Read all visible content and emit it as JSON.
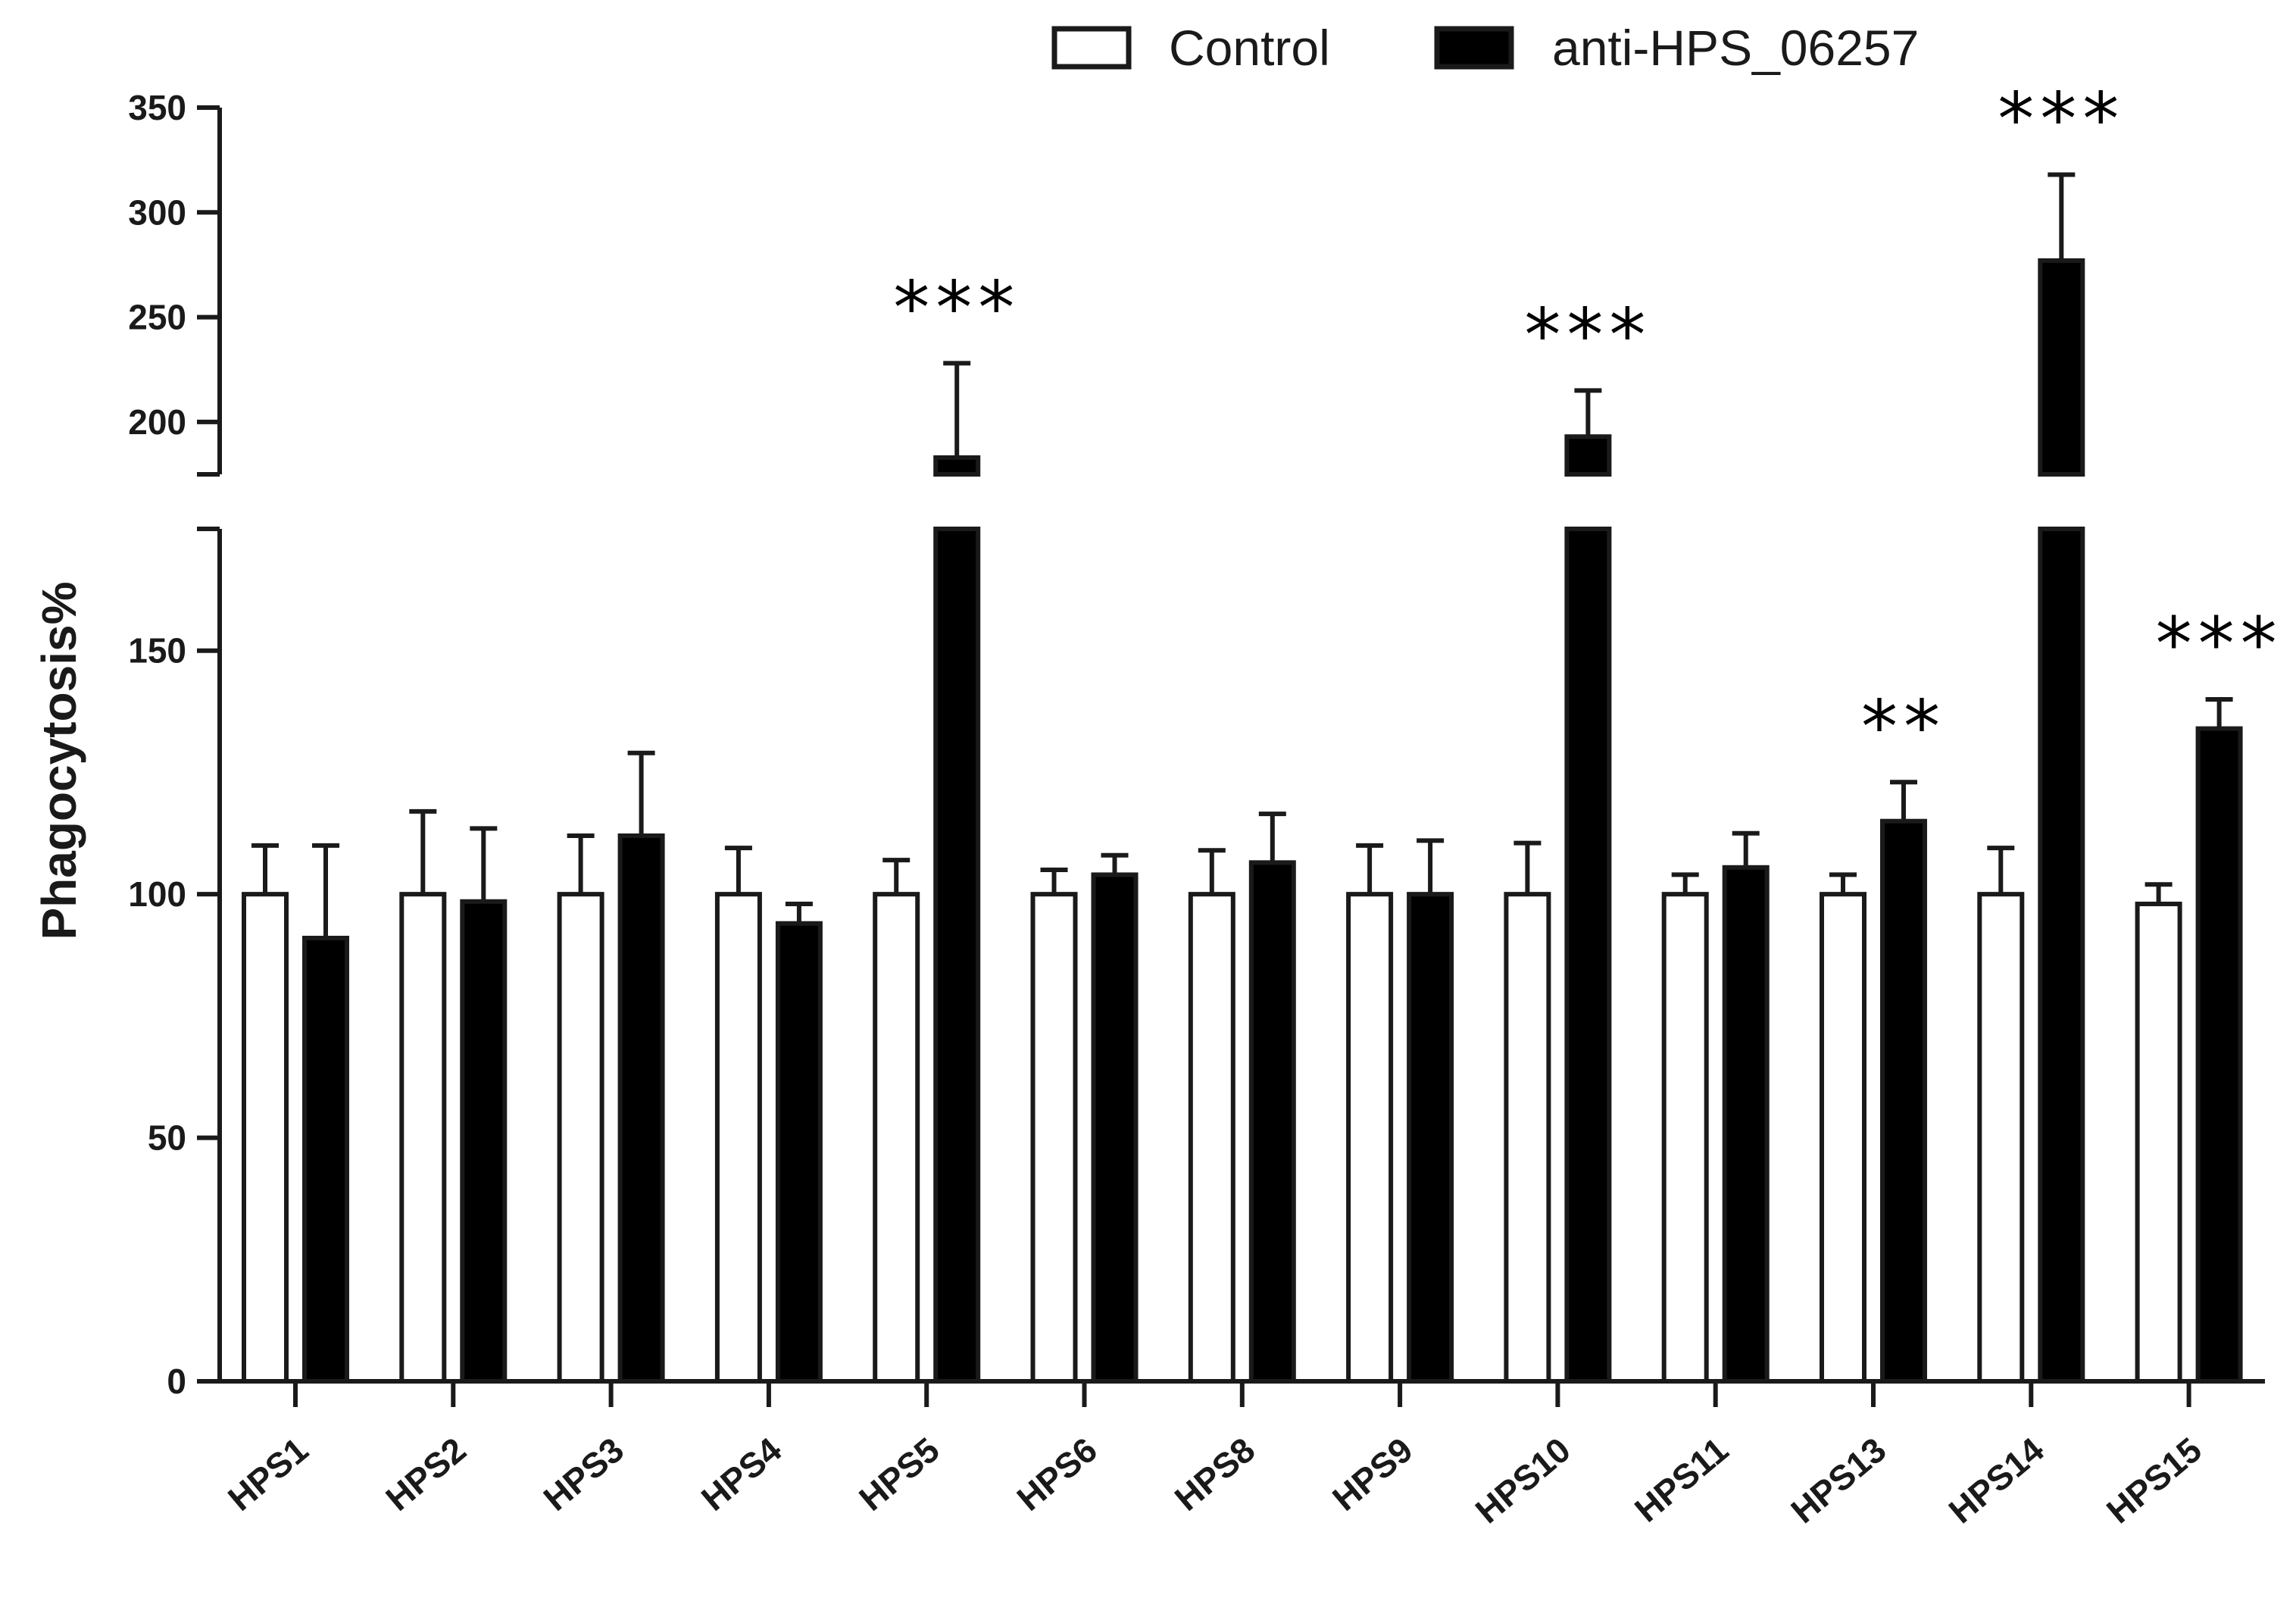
{
  "chart_data": {
    "type": "bar",
    "ylabel": "Phagocytosis%",
    "xlabel": "",
    "categories": [
      "HPS1",
      "HPS2",
      "HPS3",
      "HPS4",
      "HPS5",
      "HPS6",
      "HPS8",
      "HPS9",
      "HPS10",
      "HPS11",
      "HPS13",
      "HPS14",
      "HPS15"
    ],
    "series": [
      {
        "name": "Control",
        "color": "#ffffff",
        "values": [
          100,
          100,
          100,
          100,
          100,
          100,
          100,
          100,
          100,
          100,
          100,
          100,
          98
        ],
        "errors": [
          10,
          17,
          12,
          9.5,
          7,
          5,
          9,
          10,
          10.5,
          4,
          4,
          9.5,
          4
        ]
      },
      {
        "name": "anti-HPS_06257",
        "color": "#000000",
        "values": [
          91,
          98.5,
          112,
          94,
          183,
          104,
          106.5,
          100,
          193,
          105.5,
          115,
          277,
          134
        ],
        "errors": [
          19,
          15,
          17,
          4,
          45,
          4,
          10,
          11,
          22,
          7,
          8,
          41,
          6
        ]
      }
    ],
    "significance": [
      "",
      "",
      "",
      "",
      "***",
      "",
      "",
      "",
      "***",
      "",
      "**",
      "***",
      "***"
    ],
    "y_axis_lower": {
      "range": [
        0,
        175
      ],
      "ticks": [
        0,
        50,
        100,
        150
      ]
    },
    "y_axis_upper": {
      "range": [
        175,
        350
      ],
      "ticks": [
        200,
        250,
        300,
        350
      ]
    },
    "broken_axis": true,
    "grid": false,
    "legend_position": "top-right"
  }
}
